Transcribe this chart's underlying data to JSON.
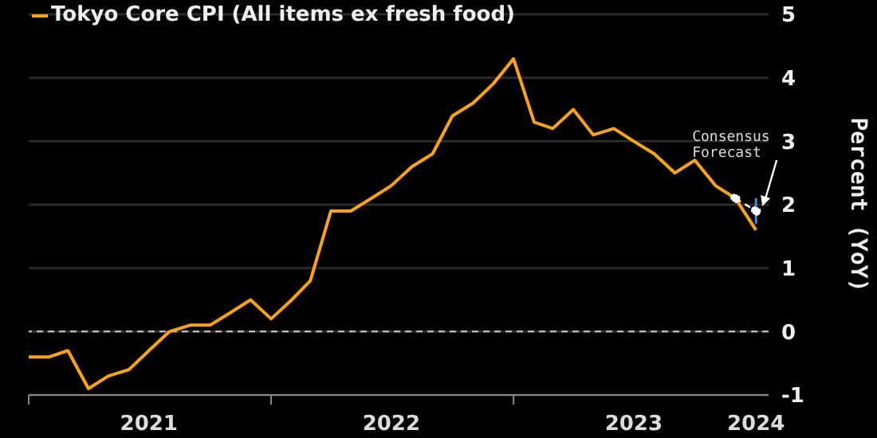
{
  "chart_data": {
    "type": "line",
    "ylabel": "Percent (YoY)",
    "x": [
      "2021-01",
      "2021-02",
      "2021-03",
      "2021-04",
      "2021-05",
      "2021-06",
      "2021-07",
      "2021-08",
      "2021-09",
      "2021-10",
      "2021-11",
      "2021-12",
      "2022-01",
      "2022-02",
      "2022-03",
      "2022-04",
      "2022-05",
      "2022-06",
      "2022-07",
      "2022-08",
      "2022-09",
      "2022-10",
      "2022-11",
      "2022-12",
      "2023-01",
      "2023-02",
      "2023-03",
      "2023-04",
      "2023-05",
      "2023-06",
      "2023-07",
      "2023-08",
      "2023-09",
      "2023-10",
      "2023-11",
      "2023-12",
      "2024-01"
    ],
    "series": [
      {
        "name": "Tokyo Core CPI (All items ex fresh food)",
        "color": "#fca311",
        "values": [
          -0.4,
          -0.4,
          -0.3,
          -0.9,
          -0.7,
          -0.6,
          -0.3,
          0.0,
          0.1,
          0.1,
          0.3,
          0.5,
          0.2,
          0.5,
          0.8,
          1.9,
          1.9,
          2.1,
          2.3,
          2.6,
          2.8,
          3.4,
          3.6,
          3.9,
          4.3,
          3.3,
          3.2,
          3.5,
          3.1,
          3.2,
          3.0,
          2.8,
          2.5,
          2.7,
          2.3,
          2.1,
          1.6
        ]
      },
      {
        "type": "line",
        "color": "#ffffff",
        "line_style": "dashed",
        "marker": "circle",
        "x": [
          "2023-12",
          "2024-01"
        ],
        "values": [
          2.1,
          1.9
        ],
        "errors": [
          null,
          [
            1.7,
            2.1
          ]
        ]
      }
    ],
    "xlim": [
      "2021-01-01",
      "2024-01-20"
    ],
    "xticks": [
      {
        "value": "2021-01",
        "label": null
      },
      {
        "value": "2021-07",
        "label": "2021"
      },
      {
        "value": "2022-01",
        "label": null
      },
      {
        "value": "2022-07",
        "label": "2022"
      },
      {
        "value": "2023-01",
        "label": null
      },
      {
        "value": "2023-07",
        "label": "2023"
      },
      {
        "value": "2024-01",
        "label": "2024"
      }
    ],
    "ylim": [
      -1,
      5
    ],
    "yticks": [
      -1,
      0,
      1,
      2,
      3,
      4,
      5
    ],
    "grid": "y",
    "legend": "top left",
    "ref_lines": [
      {
        "axis": "y",
        "value": 0,
        "color": "#cccccc",
        "line_style": "dashed"
      }
    ],
    "annotations": [
      "Consensus Forecast"
    ]
  }
}
